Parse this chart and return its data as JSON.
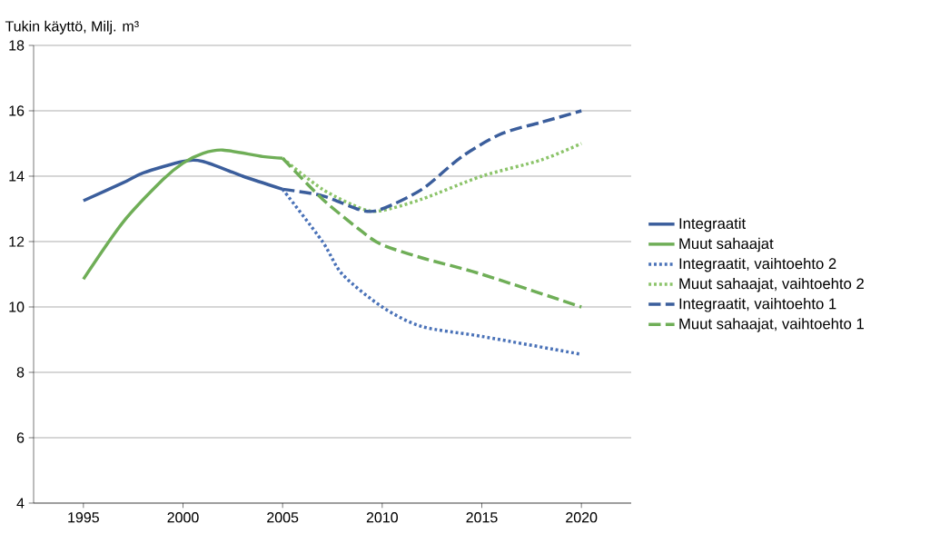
{
  "chart_data": {
    "type": "line",
    "ylabel": "Tukin käyttö, Milj. m³",
    "xlim": [
      1992.5,
      2022.5
    ],
    "xticks": [
      1995,
      2000,
      2005,
      2010,
      2015,
      2020
    ],
    "ylim": [
      4,
      18
    ],
    "yticks": [
      4,
      6,
      8,
      10,
      12,
      14,
      16,
      18
    ],
    "grid": "y",
    "legend": "right",
    "marker": "none",
    "series": [
      {
        "name": "Integraatit",
        "color": "#3b5e9c",
        "line_style": "solid",
        "x": [
          1995,
          1997,
          1998,
          2000,
          2001,
          2003,
          2005
        ],
        "values": [
          13.25,
          13.8,
          14.1,
          14.45,
          14.45,
          14.0,
          13.6
        ]
      },
      {
        "name": "Muut sahaajat",
        "color": "#6fae57",
        "line_style": "solid",
        "x": [
          1995,
          1997,
          1999,
          2000,
          2001,
          2002,
          2004,
          2005
        ],
        "values": [
          10.85,
          12.6,
          13.9,
          14.4,
          14.7,
          14.8,
          14.6,
          14.55
        ]
      },
      {
        "name": "Integraatit, vaihtoehto 2",
        "color": "#4a72b8",
        "line_style": "dotted",
        "x": [
          2005,
          2007,
          2008,
          2010,
          2012,
          2015,
          2020
        ],
        "values": [
          13.6,
          12.0,
          11.0,
          10.0,
          9.4,
          9.1,
          8.55
        ]
      },
      {
        "name": "Muut sahaajat, vaihtoehto 2",
        "color": "#8cc46a",
        "line_style": "dotted",
        "x": [
          2005,
          2007,
          2009,
          2010,
          2012,
          2015,
          2018,
          2020
        ],
        "values": [
          14.55,
          13.6,
          13.0,
          12.95,
          13.3,
          14.0,
          14.5,
          15.0
        ]
      },
      {
        "name": "Integraatit, vaihtoehto 1",
        "color": "#3b5e9c",
        "line_style": "dashed",
        "x": [
          2005,
          2007,
          2009,
          2010,
          2012,
          2014,
          2016,
          2018,
          2020
        ],
        "values": [
          13.6,
          13.4,
          12.95,
          13.0,
          13.6,
          14.6,
          15.3,
          15.65,
          16.0
        ]
      },
      {
        "name": "Muut sahaajat, vaihtoehto 1",
        "color": "#6fae57",
        "line_style": "dashed",
        "x": [
          2005,
          2007,
          2009,
          2010,
          2012,
          2015,
          2020
        ],
        "values": [
          14.55,
          13.3,
          12.3,
          11.9,
          11.5,
          11.0,
          10.0
        ]
      }
    ]
  }
}
